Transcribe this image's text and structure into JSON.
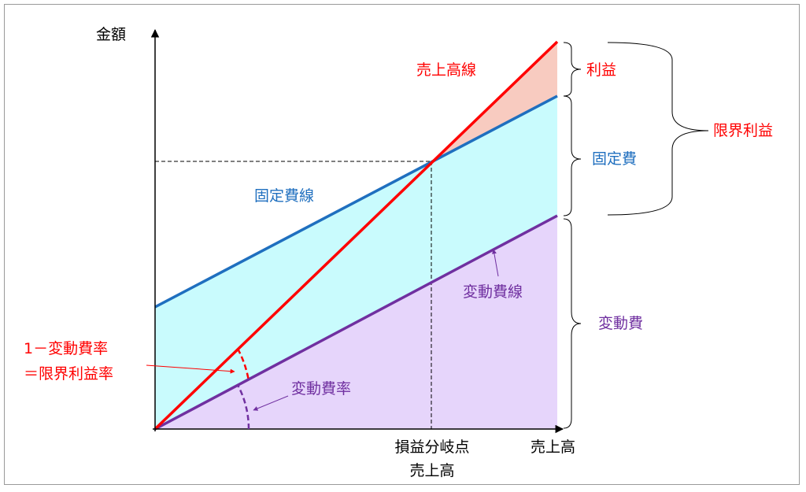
{
  "axes": {
    "y_label": "金額",
    "x_label": "売上高",
    "break_even_label_line1": "損益分岐点",
    "break_even_label_line2": "売上高"
  },
  "lines": {
    "sales_line": "売上高線",
    "fixed_cost_line": "固定費線",
    "variable_cost_line": "変動費線"
  },
  "regions": {
    "profit": "利益",
    "fixed_cost": "固定費",
    "variable_cost": "変動費",
    "marginal_profit": "限界利益"
  },
  "angles": {
    "variable_cost_ratio": "変動費率",
    "marginal_profit_ratio_line1": "1－変動費率",
    "marginal_profit_ratio_line2": "＝限界利益率"
  },
  "colors": {
    "sales": "#ff0000",
    "fixed": "#1f6fbf",
    "variable": "#7030a0",
    "profit_fill": "#f8cbc0",
    "fixed_fill": "#c9fbfd",
    "variable_fill": "#e6d5fb",
    "axis": "#000000"
  }
}
